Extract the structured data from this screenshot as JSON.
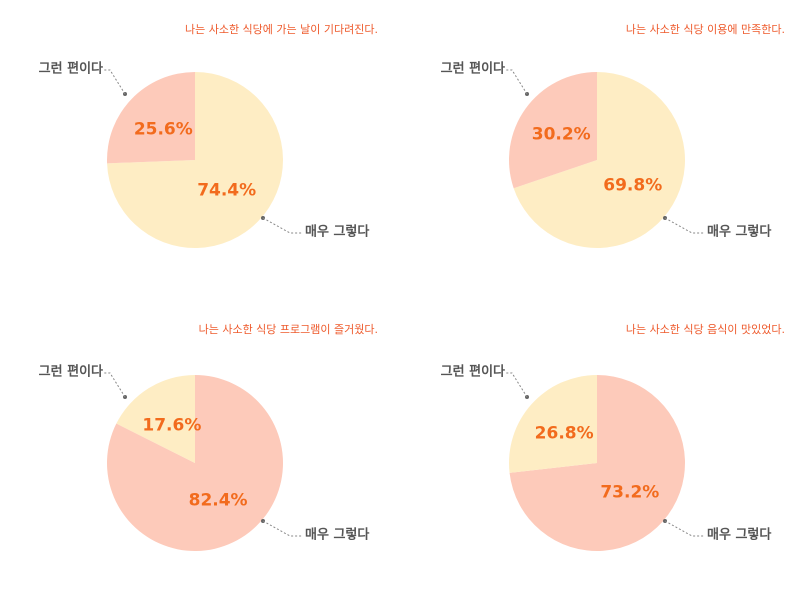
{
  "chart_data": [
    {
      "type": "pie",
      "title": "나는 사소한 식당에 가는 날이 기다려진다.",
      "categories": [
        "매우 그렇다",
        "그런 편이다"
      ],
      "values": [
        74.4,
        25.6
      ],
      "value_labels": [
        "74.4%",
        "25.6%"
      ],
      "colors": [
        "#feedc4",
        "#fdcaba"
      ]
    },
    {
      "type": "pie",
      "title": "나는 사소한 식당 이용에 만족한다.",
      "categories": [
        "매우 그렇다",
        "그런 편이다"
      ],
      "values": [
        69.8,
        30.2
      ],
      "value_labels": [
        "69.8%",
        "30.2%"
      ],
      "colors": [
        "#feedc4",
        "#fdcaba"
      ]
    },
    {
      "type": "pie",
      "title": "나는 사소한 식당 프로그램이 즐거웠다.",
      "categories": [
        "매우 그렇다",
        "그런 편이다"
      ],
      "values": [
        82.4,
        17.6
      ],
      "value_labels": [
        "82.4%",
        "17.6%"
      ],
      "colors": [
        "#fdcaba",
        "#feedc4"
      ]
    },
    {
      "type": "pie",
      "title": "나는 사소한 식당 음식이 맛있었다.",
      "categories": [
        "매우 그렇다",
        "그런 편이다"
      ],
      "values": [
        73.2,
        26.8
      ],
      "value_labels": [
        "73.2%",
        "26.8%"
      ],
      "colors": [
        "#fdcaba",
        "#feedc4"
      ]
    }
  ]
}
